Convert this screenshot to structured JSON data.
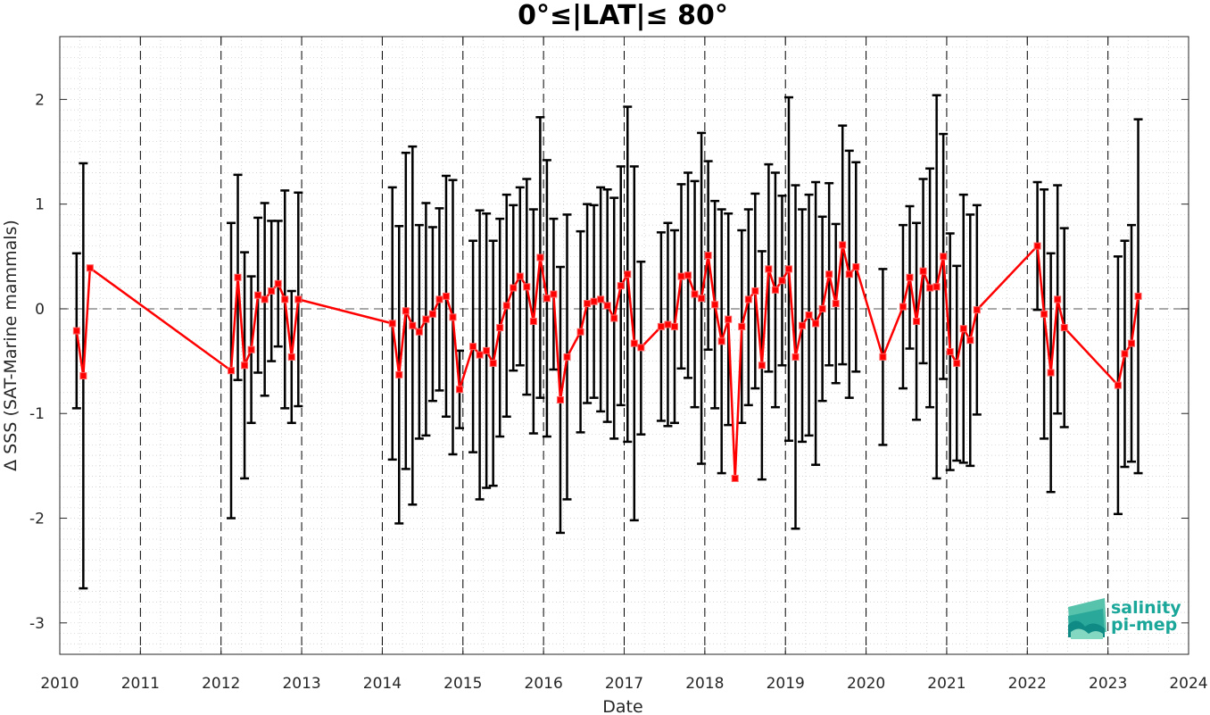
{
  "chart_data": {
    "type": "line",
    "title": "0°≤|LAT|≤ 80°",
    "xlabel": "Date",
    "ylabel": "Δ SSS (SAT-Marine mammals)",
    "xlim": [
      2010,
      2024
    ],
    "ylim": [
      -3.3,
      2.6
    ],
    "xticks": [
      2010,
      2011,
      2012,
      2013,
      2014,
      2015,
      2016,
      2017,
      2018,
      2019,
      2020,
      2021,
      2022,
      2023,
      2024
    ],
    "yticks": [
      -3,
      -2,
      -1,
      0,
      1,
      2
    ],
    "grid": true,
    "year_boundaries_dashed": true,
    "zero_line_dashed": true,
    "series": [
      {
        "color": "#ff0000",
        "errorbar_color": "#000000",
        "points": [
          {
            "x": "2010-03",
            "y": -0.21,
            "lo": -0.95,
            "hi": 0.53
          },
          {
            "x": "2010-04",
            "y": -0.64,
            "lo": -2.67,
            "hi": 1.39
          },
          {
            "x": "2010-05",
            "y": 0.39,
            "lo": 0.39,
            "hi": 0.39
          },
          {
            "x": "2012-02",
            "y": -0.59,
            "lo": -2.0,
            "hi": 0.82
          },
          {
            "x": "2012-03",
            "y": 0.3,
            "lo": -0.68,
            "hi": 1.28
          },
          {
            "x": "2012-04",
            "y": -0.54,
            "lo": -1.62,
            "hi": 0.54
          },
          {
            "x": "2012-05",
            "y": -0.39,
            "lo": -1.09,
            "hi": 0.31
          },
          {
            "x": "2012-06",
            "y": 0.13,
            "lo": -0.61,
            "hi": 0.87
          },
          {
            "x": "2012-07",
            "y": 0.09,
            "lo": -0.83,
            "hi": 1.01
          },
          {
            "x": "2012-08",
            "y": 0.17,
            "lo": -0.5,
            "hi": 0.84
          },
          {
            "x": "2012-09",
            "y": 0.24,
            "lo": -0.36,
            "hi": 0.84
          },
          {
            "x": "2012-10",
            "y": 0.09,
            "lo": -0.95,
            "hi": 1.13
          },
          {
            "x": "2012-11",
            "y": -0.46,
            "lo": -1.09,
            "hi": 0.17
          },
          {
            "x": "2012-12",
            "y": 0.09,
            "lo": -0.93,
            "hi": 1.11
          },
          {
            "x": "2014-02",
            "y": -0.14,
            "lo": -1.44,
            "hi": 1.16
          },
          {
            "x": "2014-03",
            "y": -0.63,
            "lo": -2.05,
            "hi": 0.79
          },
          {
            "x": "2014-04",
            "y": -0.02,
            "lo": -1.53,
            "hi": 1.49
          },
          {
            "x": "2014-05",
            "y": -0.16,
            "lo": -1.87,
            "hi": 1.55
          },
          {
            "x": "2014-06",
            "y": -0.22,
            "lo": -1.24,
            "hi": 0.8
          },
          {
            "x": "2014-07",
            "y": -0.1,
            "lo": -1.21,
            "hi": 1.01
          },
          {
            "x": "2014-08",
            "y": -0.05,
            "lo": -0.88,
            "hi": 0.78
          },
          {
            "x": "2014-09",
            "y": 0.09,
            "lo": -0.78,
            "hi": 0.96
          },
          {
            "x": "2014-10",
            "y": 0.12,
            "lo": -1.03,
            "hi": 1.27
          },
          {
            "x": "2014-11",
            "y": -0.08,
            "lo": -1.39,
            "hi": 1.23
          },
          {
            "x": "2014-12",
            "y": -0.77,
            "lo": -1.14,
            "hi": -0.4
          },
          {
            "x": "2015-02",
            "y": -0.36,
            "lo": -1.37,
            "hi": 0.65
          },
          {
            "x": "2015-03",
            "y": -0.44,
            "lo": -1.82,
            "hi": 0.94
          },
          {
            "x": "2015-04",
            "y": -0.4,
            "lo": -1.71,
            "hi": 0.91
          },
          {
            "x": "2015-05",
            "y": -0.52,
            "lo": -1.69,
            "hi": 0.65
          },
          {
            "x": "2015-06",
            "y": -0.18,
            "lo": -1.22,
            "hi": 0.86
          },
          {
            "x": "2015-07",
            "y": 0.03,
            "lo": -1.03,
            "hi": 1.09
          },
          {
            "x": "2015-08",
            "y": 0.2,
            "lo": -0.59,
            "hi": 0.99
          },
          {
            "x": "2015-09",
            "y": 0.31,
            "lo": -0.54,
            "hi": 1.16
          },
          {
            "x": "2015-10",
            "y": 0.21,
            "lo": -0.82,
            "hi": 1.24
          },
          {
            "x": "2015-11",
            "y": -0.12,
            "lo": -1.19,
            "hi": 0.95
          },
          {
            "x": "2015-12",
            "y": 0.49,
            "lo": -0.85,
            "hi": 1.83
          },
          {
            "x": "2016-01",
            "y": 0.1,
            "lo": -1.22,
            "hi": 1.42
          },
          {
            "x": "2016-02",
            "y": 0.14,
            "lo": -0.58,
            "hi": 0.86
          },
          {
            "x": "2016-03",
            "y": -0.87,
            "lo": -2.14,
            "hi": 0.4
          },
          {
            "x": "2016-04",
            "y": -0.46,
            "lo": -1.82,
            "hi": 0.9
          },
          {
            "x": "2016-06",
            "y": -0.22,
            "lo": -1.18,
            "hi": 0.74
          },
          {
            "x": "2016-07",
            "y": 0.05,
            "lo": -0.9,
            "hi": 1.0
          },
          {
            "x": "2016-08",
            "y": 0.07,
            "lo": -0.85,
            "hi": 0.99
          },
          {
            "x": "2016-09",
            "y": 0.09,
            "lo": -0.98,
            "hi": 1.16
          },
          {
            "x": "2016-10",
            "y": 0.03,
            "lo": -1.08,
            "hi": 1.14
          },
          {
            "x": "2016-11",
            "y": -0.09,
            "lo": -1.24,
            "hi": 1.06
          },
          {
            "x": "2016-12",
            "y": 0.22,
            "lo": -0.92,
            "hi": 1.36
          },
          {
            "x": "2017-01",
            "y": 0.33,
            "lo": -1.27,
            "hi": 1.93
          },
          {
            "x": "2017-02",
            "y": -0.33,
            "lo": -2.02,
            "hi": 1.36
          },
          {
            "x": "2017-03",
            "y": -0.37,
            "lo": -1.2,
            "hi": 0.45
          },
          {
            "x": "2017-06",
            "y": -0.17,
            "lo": -1.07,
            "hi": 0.73
          },
          {
            "x": "2017-07",
            "y": -0.15,
            "lo": -1.12,
            "hi": 0.82
          },
          {
            "x": "2017-08",
            "y": -0.17,
            "lo": -1.09,
            "hi": 0.75
          },
          {
            "x": "2017-09",
            "y": 0.31,
            "lo": -0.57,
            "hi": 1.19
          },
          {
            "x": "2017-10",
            "y": 0.32,
            "lo": -0.66,
            "hi": 1.3
          },
          {
            "x": "2017-11",
            "y": 0.14,
            "lo": -0.94,
            "hi": 1.22
          },
          {
            "x": "2017-12",
            "y": 0.1,
            "lo": -1.48,
            "hi": 1.68
          },
          {
            "x": "2018-01",
            "y": 0.51,
            "lo": -0.39,
            "hi": 1.41
          },
          {
            "x": "2018-02",
            "y": 0.04,
            "lo": -0.95,
            "hi": 1.03
          },
          {
            "x": "2018-03",
            "y": -0.31,
            "lo": -1.57,
            "hi": 0.95
          },
          {
            "x": "2018-04",
            "y": -0.1,
            "lo": -1.11,
            "hi": 0.91
          },
          {
            "x": "2018-05",
            "y": -1.62,
            "lo": -1.62,
            "hi": -1.62
          },
          {
            "x": "2018-06",
            "y": -0.17,
            "lo": -1.09,
            "hi": 0.75
          },
          {
            "x": "2018-07",
            "y": 0.09,
            "lo": -0.92,
            "hi": 0.95
          },
          {
            "x": "2018-08",
            "y": 0.17,
            "lo": -0.76,
            "hi": 1.1
          },
          {
            "x": "2018-09",
            "y": -0.54,
            "lo": -1.63,
            "hi": 0.55
          },
          {
            "x": "2018-10",
            "y": 0.38,
            "lo": -0.6,
            "hi": 1.38
          },
          {
            "x": "2018-11",
            "y": 0.18,
            "lo": -0.94,
            "hi": 1.3
          },
          {
            "x": "2018-12",
            "y": 0.27,
            "lo": -0.54,
            "hi": 1.08
          },
          {
            "x": "2019-01",
            "y": 0.38,
            "lo": -1.26,
            "hi": 2.02
          },
          {
            "x": "2019-02",
            "y": -0.46,
            "lo": -2.1,
            "hi": 1.18
          },
          {
            "x": "2019-03",
            "y": -0.16,
            "lo": -1.27,
            "hi": 0.95
          },
          {
            "x": "2019-04",
            "y": -0.06,
            "lo": -1.21,
            "hi": 1.09
          },
          {
            "x": "2019-05",
            "y": -0.14,
            "lo": -1.49,
            "hi": 1.21
          },
          {
            "x": "2019-06",
            "y": 0.0,
            "lo": -0.88,
            "hi": 0.88
          },
          {
            "x": "2019-07",
            "y": 0.33,
            "lo": -0.54,
            "hi": 1.2
          },
          {
            "x": "2019-08",
            "y": 0.05,
            "lo": -0.71,
            "hi": 0.81
          },
          {
            "x": "2019-09",
            "y": 0.61,
            "lo": -0.53,
            "hi": 1.75
          },
          {
            "x": "2019-10",
            "y": 0.33,
            "lo": -0.85,
            "hi": 1.51
          },
          {
            "x": "2019-11",
            "y": 0.4,
            "lo": -0.6,
            "hi": 1.4
          },
          {
            "x": "2020-03",
            "y": -0.46,
            "lo": -1.3,
            "hi": 0.38
          },
          {
            "x": "2020-06",
            "y": 0.02,
            "lo": -0.76,
            "hi": 0.8
          },
          {
            "x": "2020-07",
            "y": 0.3,
            "lo": -0.38,
            "hi": 0.98
          },
          {
            "x": "2020-08",
            "y": -0.12,
            "lo": -1.06,
            "hi": 0.82
          },
          {
            "x": "2020-09",
            "y": 0.36,
            "lo": -0.52,
            "hi": 1.24
          },
          {
            "x": "2020-10",
            "y": 0.2,
            "lo": -0.94,
            "hi": 1.34
          },
          {
            "x": "2020-11",
            "y": 0.21,
            "lo": -1.62,
            "hi": 2.04
          },
          {
            "x": "2020-12",
            "y": 0.5,
            "lo": -0.67,
            "hi": 1.67
          },
          {
            "x": "2021-01",
            "y": -0.41,
            "lo": -1.54,
            "hi": 0.72
          },
          {
            "x": "2021-02",
            "y": -0.52,
            "lo": -1.45,
            "hi": 0.41
          },
          {
            "x": "2021-03",
            "y": -0.19,
            "lo": -1.47,
            "hi": 1.09
          },
          {
            "x": "2021-04",
            "y": -0.3,
            "lo": -1.5,
            "hi": 0.9
          },
          {
            "x": "2021-05",
            "y": -0.01,
            "lo": -1.01,
            "hi": 0.99
          },
          {
            "x": "2022-02",
            "y": 0.6,
            "lo": -0.01,
            "hi": 1.21
          },
          {
            "x": "2022-03",
            "y": -0.05,
            "lo": -1.24,
            "hi": 1.14
          },
          {
            "x": "2022-04",
            "y": -0.61,
            "lo": -1.75,
            "hi": 0.53
          },
          {
            "x": "2022-05",
            "y": 0.09,
            "lo": -1.0,
            "hi": 1.18
          },
          {
            "x": "2022-06",
            "y": -0.18,
            "lo": -1.13,
            "hi": 0.77
          },
          {
            "x": "2023-02",
            "y": -0.73,
            "lo": -1.96,
            "hi": 0.5
          },
          {
            "x": "2023-03",
            "y": -0.43,
            "lo": -1.51,
            "hi": 0.65
          },
          {
            "x": "2023-04",
            "y": -0.33,
            "lo": -1.46,
            "hi": 0.8
          },
          {
            "x": "2023-05",
            "y": 0.12,
            "lo": -1.57,
            "hi": 1.81
          }
        ]
      }
    ]
  },
  "logo": {
    "line1": "salinity",
    "line2": "pi-mep",
    "color": "#1aa79a"
  }
}
